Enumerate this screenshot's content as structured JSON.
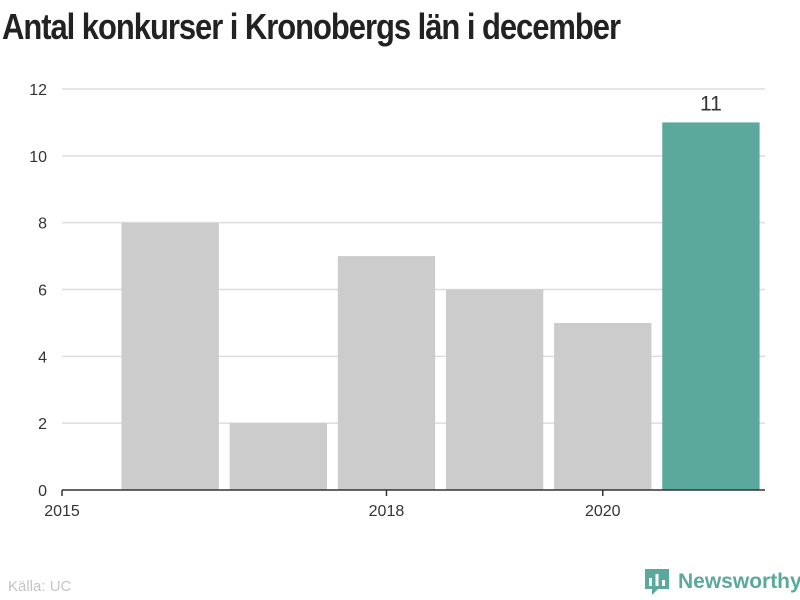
{
  "title": "Antal konkurser i Kronobergs län i december",
  "source": "Källa: UC",
  "brand": {
    "name": "Newsworthy",
    "icon": "bar-chart-chat-icon",
    "color": "#5ba89d"
  },
  "chart_data": {
    "type": "bar",
    "title": "Antal konkurser i Kronobergs län i december",
    "xlabel": "",
    "ylabel": "",
    "x": [
      2016,
      2017,
      2018,
      2019,
      2020,
      2021
    ],
    "values": [
      8,
      2,
      7,
      6,
      5,
      11
    ],
    "xlim": [
      2015,
      2021.5
    ],
    "ylim": [
      0,
      12
    ],
    "yticks": [
      0,
      2,
      4,
      6,
      8,
      10,
      12
    ],
    "xticks": [
      2015,
      2018,
      2020
    ],
    "highlight_index": 5,
    "highlight_label": "11",
    "bar_color": "#cccccc",
    "highlight_color": "#5ba89d",
    "grid": true,
    "legend": "none"
  }
}
